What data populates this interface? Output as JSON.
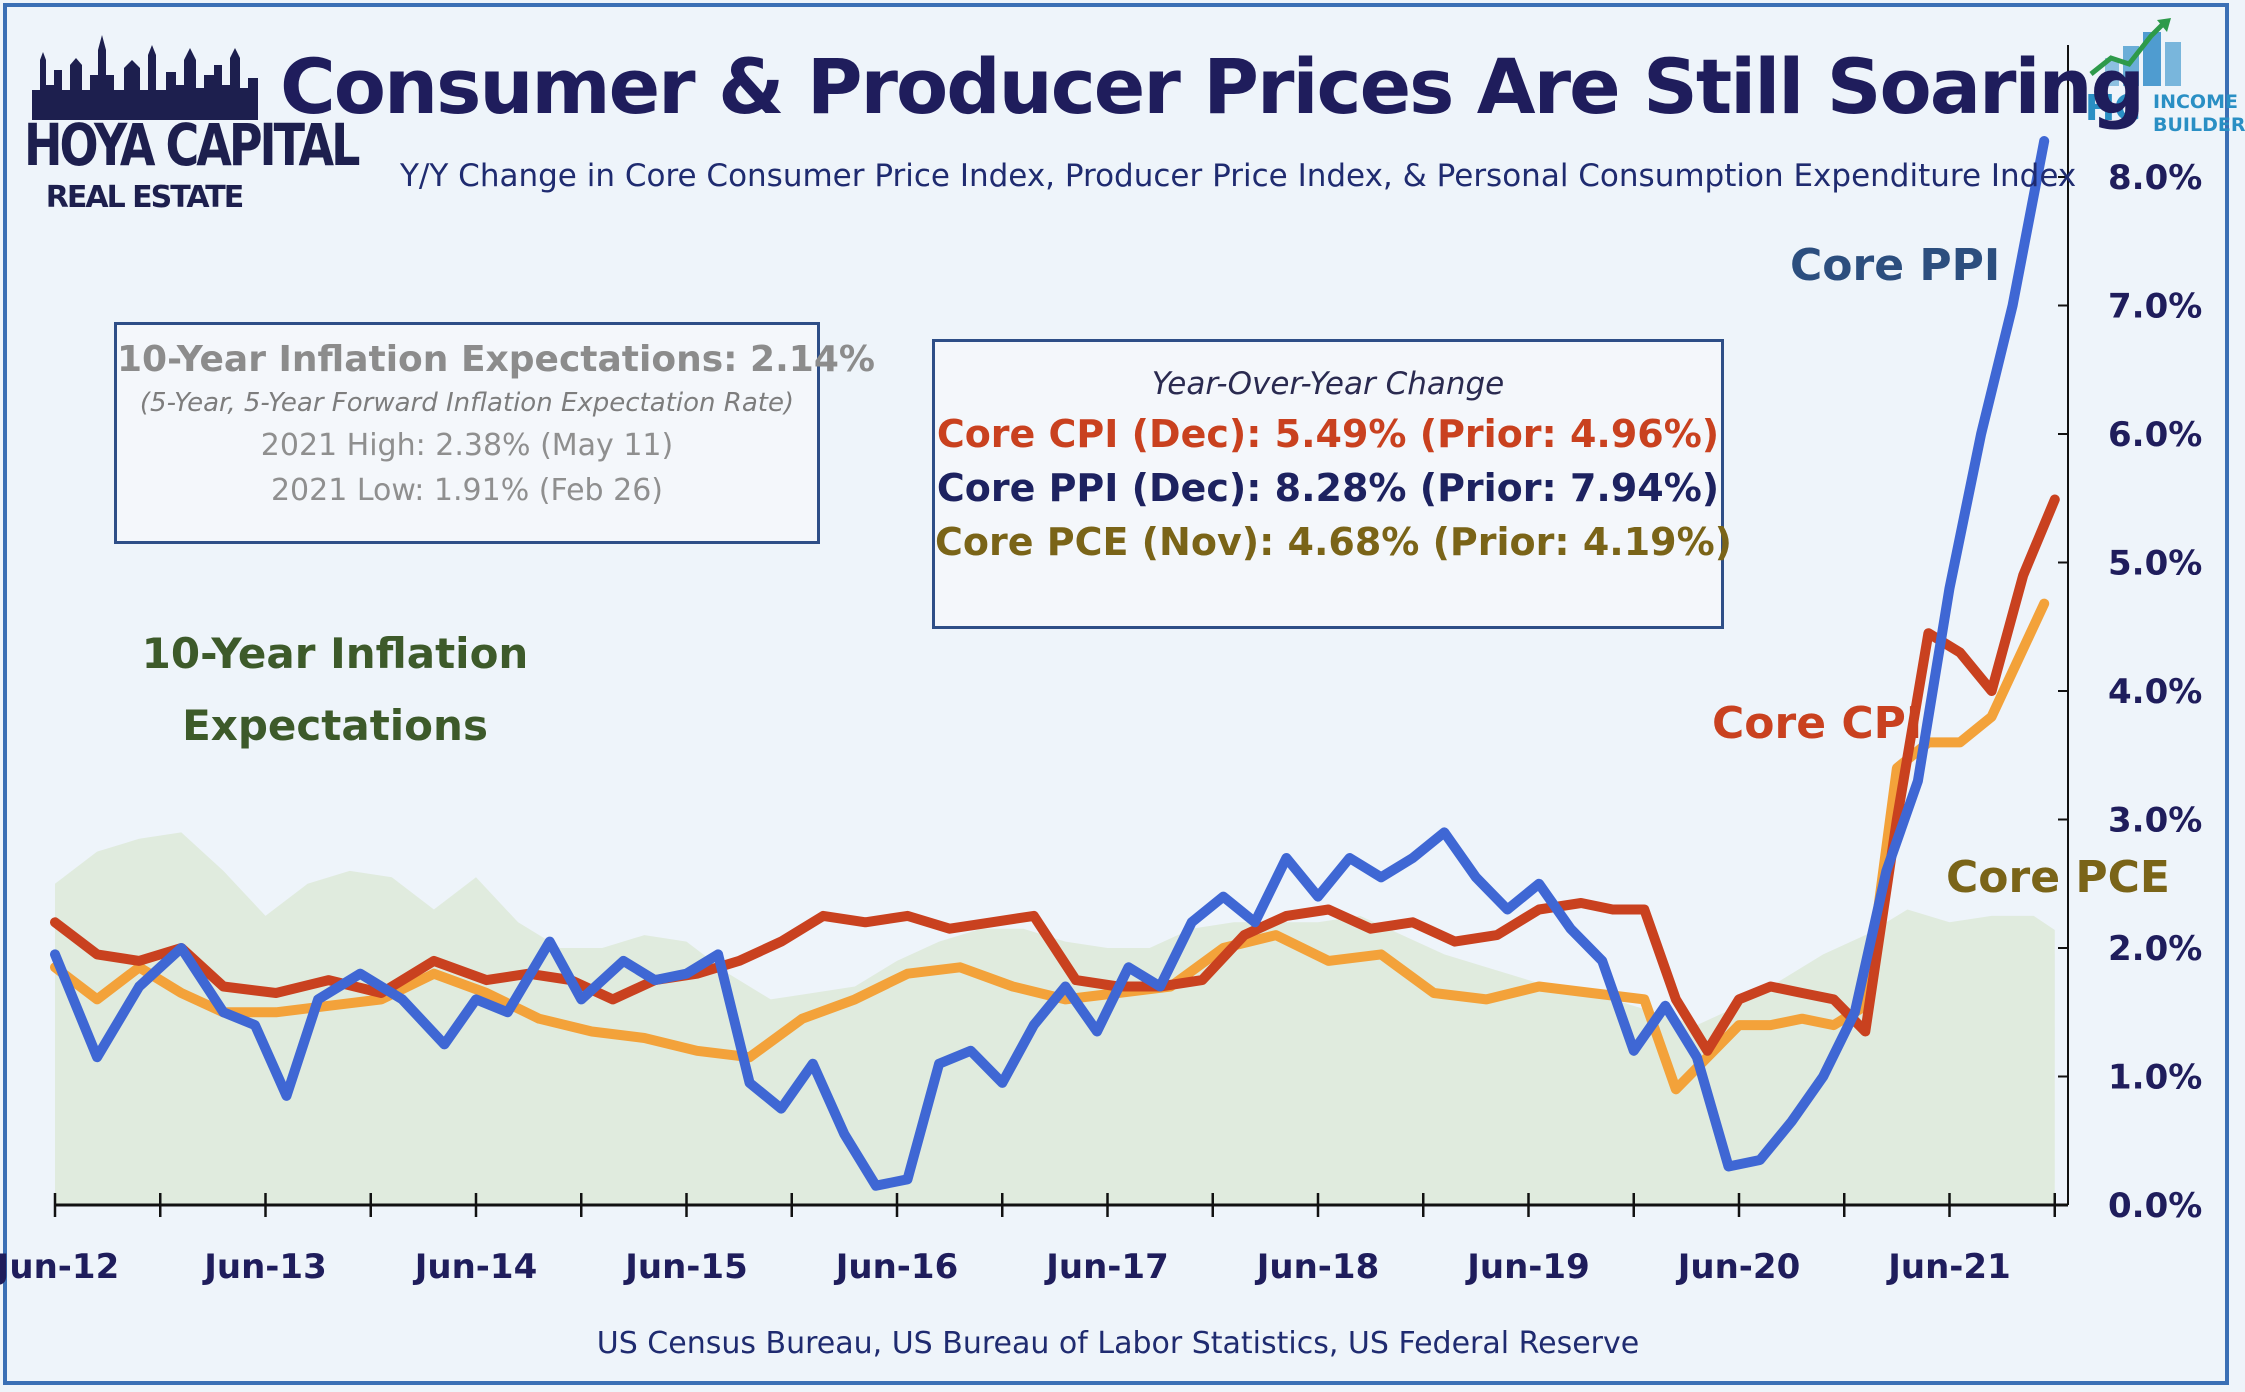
{
  "title": "Consumer & Producer Prices Are Still Soaring",
  "subtitle": "Y/Y Change in Core Consumer Price Index, Producer Price Index, & Personal Consumption Expenditure Index",
  "source": "US Census Bureau, US Bureau of Labor Statistics, US Federal Reserve",
  "logo_left": {
    "line1": "HOYA CAPITAL",
    "line2": "REAL ESTATE"
  },
  "logo_right": {
    "hc": "HC",
    "line1": "INCOME",
    "line2": "BUILDER"
  },
  "expectations_box": {
    "headline": "10-Year Inflation Expectations: 2.14%",
    "note": "(5-Year, 5-Year Forward Inflation Expectation Rate)",
    "high": "2021 High: 2.38% (May 11)",
    "low": "2021 Low: 1.91% (Feb 26)"
  },
  "yoy_box": {
    "heading": "Year-Over-Year Change",
    "cpi": "Core CPI (Dec):  5.49% (Prior: 4.96%)",
    "ppi": "Core PPI (Dec): 8.28% (Prior: 7.94%)",
    "pce": "Core PCE (Nov): 4.68% (Prior: 4.19%)"
  },
  "expectations_label": "10-Year Inflation Expectations",
  "colors": {
    "ppi": "#3f67d4",
    "cpi": "#c9411f",
    "pce": "#f3a23a",
    "expectations": "#dde9d8",
    "title": "#1f1d5c",
    "expectations_label": "#3d5a2a",
    "pce_label": "#7a6418",
    "ppi_label": "#2c4e7e"
  },
  "chart_data": {
    "type": "line",
    "x_ticks": [
      "Jun-12",
      "Jun-13",
      "Jun-14",
      "Jun-15",
      "Jun-16",
      "Jun-17",
      "Jun-18",
      "Jun-19",
      "Jun-20",
      "Jun-21"
    ],
    "ylim": [
      0,
      9
    ],
    "y_ticks": [
      "0.0%",
      "1.0%",
      "2.0%",
      "3.0%",
      "4.0%",
      "5.0%",
      "6.0%",
      "7.0%",
      "8.0%"
    ],
    "series": [
      {
        "name": "Core PPI",
        "key": "ppi",
        "x": [
          2012.45,
          2012.65,
          2012.85,
          2013.05,
          2013.25,
          2013.4,
          2013.55,
          2013.7,
          2013.9,
          2014.1,
          2014.3,
          2014.45,
          2014.6,
          2014.8,
          2014.95,
          2015.15,
          2015.3,
          2015.45,
          2015.6,
          2015.75,
          2015.9,
          2016.05,
          2016.2,
          2016.35,
          2016.5,
          2016.65,
          2016.8,
          2016.95,
          2017.1,
          2017.25,
          2017.4,
          2017.55,
          2017.7,
          2017.85,
          2018.0,
          2018.15,
          2018.3,
          2018.45,
          2018.6,
          2018.75,
          2018.9,
          2019.05,
          2019.2,
          2019.35,
          2019.5,
          2019.65,
          2019.8,
          2019.95,
          2020.1,
          2020.25,
          2020.4,
          2020.55,
          2020.7,
          2020.85,
          2021.0,
          2021.15,
          2021.3,
          2021.45,
          2021.6,
          2021.75,
          2021.9
        ],
        "y": [
          1.95,
          1.15,
          1.7,
          2.0,
          1.5,
          1.4,
          0.85,
          1.6,
          1.8,
          1.6,
          1.25,
          1.6,
          1.5,
          2.05,
          1.6,
          1.9,
          1.75,
          1.8,
          1.95,
          0.95,
          0.75,
          1.1,
          0.55,
          0.15,
          0.2,
          1.1,
          1.2,
          0.95,
          1.4,
          1.7,
          1.35,
          1.85,
          1.7,
          2.2,
          2.4,
          2.2,
          2.7,
          2.4,
          2.7,
          2.55,
          2.7,
          2.9,
          2.55,
          2.3,
          2.5,
          2.15,
          1.9,
          1.2,
          1.55,
          1.15,
          0.3,
          0.35,
          0.65,
          1.0,
          1.5,
          2.6,
          3.3,
          4.8,
          6.0,
          7.0,
          8.28
        ]
      },
      {
        "name": "Core CPI",
        "key": "cpi",
        "x": [
          2012.45,
          2012.65,
          2012.85,
          2013.05,
          2013.25,
          2013.5,
          2013.75,
          2014.0,
          2014.25,
          2014.5,
          2014.7,
          2014.9,
          2015.1,
          2015.3,
          2015.5,
          2015.7,
          2015.9,
          2016.1,
          2016.3,
          2016.5,
          2016.7,
          2016.9,
          2017.1,
          2017.3,
          2017.5,
          2017.7,
          2017.9,
          2018.1,
          2018.3,
          2018.5,
          2018.7,
          2018.9,
          2019.1,
          2019.3,
          2019.5,
          2019.7,
          2019.85,
          2020.0,
          2020.15,
          2020.3,
          2020.45,
          2020.6,
          2020.75,
          2020.9,
          2021.05,
          2021.2,
          2021.35,
          2021.5,
          2021.65,
          2021.8,
          2021.95
        ],
        "y": [
          2.2,
          1.95,
          1.9,
          2.0,
          1.7,
          1.65,
          1.75,
          1.65,
          1.9,
          1.75,
          1.8,
          1.75,
          1.6,
          1.75,
          1.8,
          1.9,
          2.05,
          2.25,
          2.2,
          2.25,
          2.15,
          2.2,
          2.25,
          1.75,
          1.7,
          1.7,
          1.75,
          2.1,
          2.25,
          2.3,
          2.15,
          2.2,
          2.05,
          2.1,
          2.3,
          2.35,
          2.3,
          2.3,
          1.6,
          1.2,
          1.6,
          1.7,
          1.65,
          1.6,
          1.35,
          3.0,
          4.45,
          4.3,
          4.0,
          4.9,
          5.49
        ]
      },
      {
        "name": "Core PCE",
        "key": "pce",
        "x": [
          2012.45,
          2012.65,
          2012.85,
          2013.05,
          2013.25,
          2013.5,
          2013.75,
          2014.0,
          2014.25,
          2014.5,
          2014.75,
          2015.0,
          2015.25,
          2015.5,
          2015.75,
          2016.0,
          2016.25,
          2016.5,
          2016.75,
          2017.0,
          2017.25,
          2017.5,
          2017.75,
          2018.0,
          2018.25,
          2018.5,
          2018.75,
          2019.0,
          2019.25,
          2019.5,
          2019.75,
          2020.0,
          2020.15,
          2020.3,
          2020.45,
          2020.6,
          2020.75,
          2020.9,
          2021.05,
          2021.2,
          2021.35,
          2021.5,
          2021.65,
          2021.9
        ],
        "y": [
          1.85,
          1.6,
          1.85,
          1.65,
          1.5,
          1.5,
          1.55,
          1.6,
          1.8,
          1.65,
          1.45,
          1.35,
          1.3,
          1.2,
          1.15,
          1.45,
          1.6,
          1.8,
          1.85,
          1.7,
          1.6,
          1.65,
          1.7,
          2.0,
          2.1,
          1.9,
          1.95,
          1.65,
          1.6,
          1.7,
          1.65,
          1.6,
          0.9,
          1.15,
          1.4,
          1.4,
          1.45,
          1.4,
          1.55,
          3.4,
          3.6,
          3.6,
          3.8,
          4.68
        ]
      },
      {
        "name": "10-Year Inflation Expectations",
        "key": "expectations",
        "x": [
          2012.45,
          2012.65,
          2012.85,
          2013.05,
          2013.25,
          2013.45,
          2013.65,
          2013.85,
          2014.05,
          2014.25,
          2014.45,
          2014.65,
          2014.85,
          2015.05,
          2015.25,
          2015.45,
          2015.65,
          2015.85,
          2016.05,
          2016.25,
          2016.45,
          2016.65,
          2016.85,
          2017.05,
          2017.25,
          2017.45,
          2017.65,
          2017.85,
          2018.05,
          2018.25,
          2018.45,
          2018.65,
          2018.85,
          2019.05,
          2019.25,
          2019.45,
          2019.65,
          2019.85,
          2020.05,
          2020.25,
          2020.45,
          2020.65,
          2020.85,
          2021.05,
          2021.25,
          2021.45,
          2021.65,
          2021.85,
          2021.95
        ],
        "y": [
          2.5,
          2.75,
          2.85,
          2.9,
          2.6,
          2.25,
          2.5,
          2.6,
          2.55,
          2.3,
          2.55,
          2.2,
          2.0,
          2.0,
          2.1,
          2.05,
          1.8,
          1.6,
          1.65,
          1.7,
          1.9,
          2.05,
          2.15,
          2.15,
          2.05,
          2.0,
          2.0,
          2.15,
          2.2,
          2.2,
          2.2,
          2.25,
          2.1,
          1.95,
          1.85,
          1.75,
          1.65,
          1.6,
          1.5,
          1.4,
          1.55,
          1.75,
          1.95,
          2.1,
          2.3,
          2.2,
          2.25,
          2.25,
          2.14
        ]
      }
    ]
  }
}
